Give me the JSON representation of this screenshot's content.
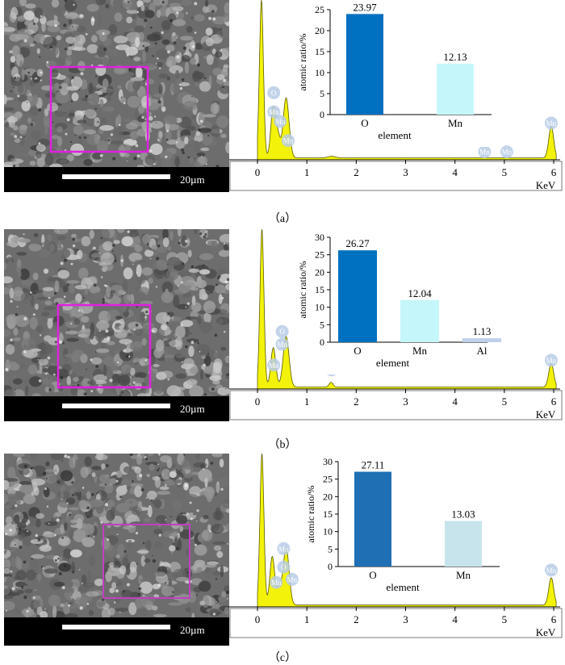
{
  "panels": [
    {
      "id": "a",
      "caption": "（a）",
      "sem": {
        "scale_label": "20µm"
      },
      "eds": {
        "x_unit": "KeV",
        "x_ticks": [
          "0",
          "1",
          "2",
          "3",
          "4",
          "5",
          "6"
        ],
        "peak_labels": [
          "Mn",
          "O",
          "Mn",
          "Mn",
          "Mn",
          "Mn",
          "Mn"
        ]
      },
      "chart_data": {
        "type": "bar",
        "xlabel": "element",
        "ylabel": "atomic ratio/%",
        "categories": [
          "O",
          "Mn"
        ],
        "values": [
          23.97,
          12.13
        ],
        "value_labels": [
          "23.97",
          "12.13"
        ],
        "ylim": [
          0,
          25
        ],
        "yticks": [
          "0",
          "5",
          "10",
          "15",
          "20",
          "25"
        ],
        "colors": [
          "#0070C0",
          "#C5F6F9"
        ]
      }
    },
    {
      "id": "b",
      "caption": "（b）",
      "sem": {
        "scale_label": "20µm"
      },
      "eds": {
        "x_unit": "KeV",
        "x_ticks": [
          "0",
          "1",
          "2",
          "3",
          "4",
          "5",
          "6"
        ],
        "peak_labels": [
          "O",
          "Mn",
          "Mn",
          "Al",
          "Mn"
        ]
      },
      "chart_data": {
        "type": "bar",
        "xlabel": "element",
        "ylabel": "atomic ratio/%",
        "categories": [
          "O",
          "Mn",
          "Al"
        ],
        "values": [
          26.27,
          12.04,
          1.13
        ],
        "value_labels": [
          "26.27",
          "12.04",
          "1.13"
        ],
        "ylim": [
          0,
          30
        ],
        "yticks": [
          "0",
          "5",
          "10",
          "15",
          "20",
          "25",
          "30"
        ],
        "colors": [
          "#0070C0",
          "#C5F6F9",
          "#BFD0EA"
        ]
      }
    },
    {
      "id": "c",
      "caption": "（c）",
      "sem": {
        "scale_label": "20µm"
      },
      "eds": {
        "x_unit": "KeV",
        "x_ticks": [
          "0",
          "1",
          "2",
          "3",
          "4",
          "5",
          "6"
        ],
        "peak_labels": [
          "Mn",
          "O",
          "Mn",
          "Mn",
          "Mn"
        ]
      },
      "chart_data": {
        "type": "bar",
        "xlabel": "element",
        "ylabel": "atomic ratio/%",
        "categories": [
          "O",
          "Mn"
        ],
        "values": [
          27.11,
          13.03
        ],
        "value_labels": [
          "27.11",
          "13.03"
        ],
        "ylim": [
          0,
          30
        ],
        "yticks": [
          "0",
          "5",
          "10",
          "15",
          "20",
          "25",
          "30"
        ],
        "colors": [
          "#1F6FB4",
          "#C7E4EC"
        ]
      }
    }
  ]
}
